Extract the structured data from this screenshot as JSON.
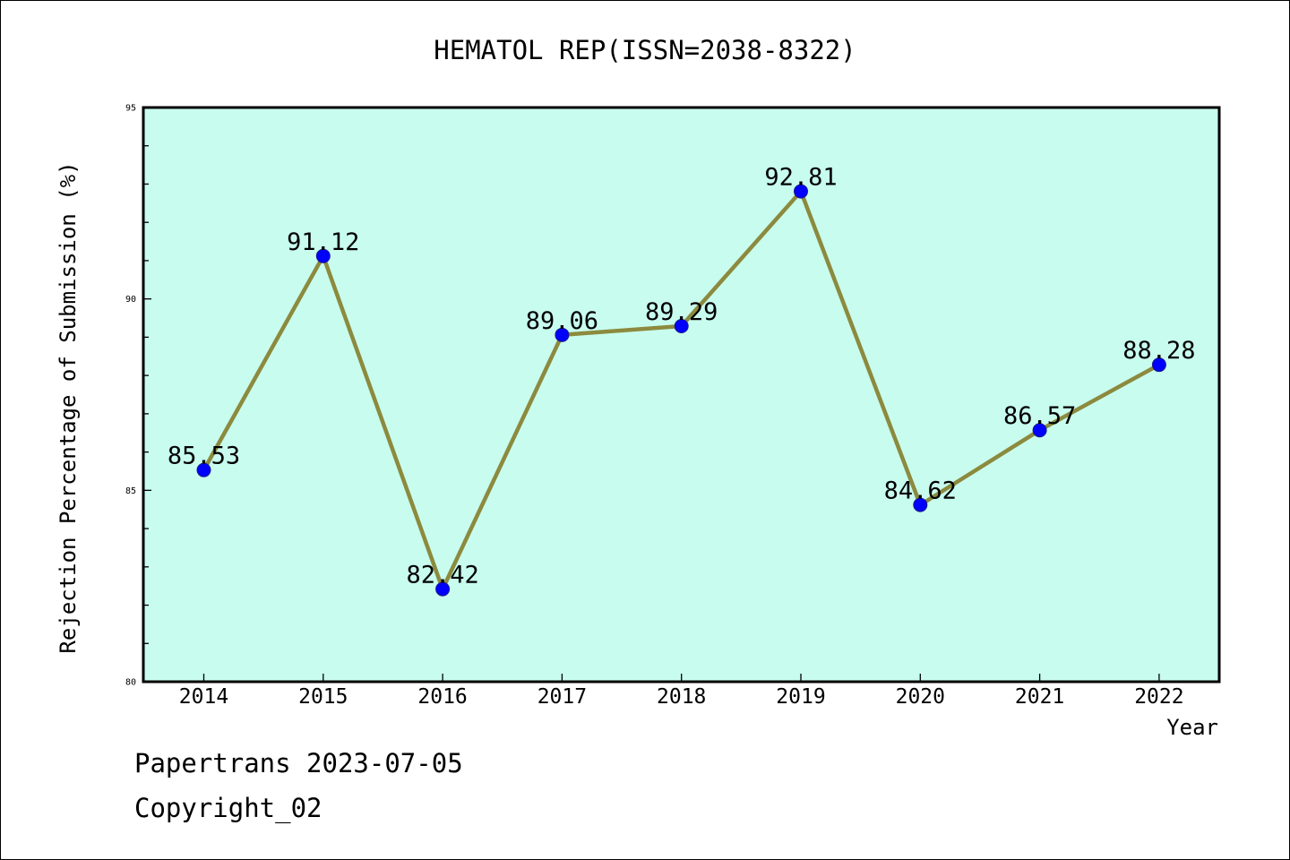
{
  "chart_data": {
    "type": "line",
    "title": "HEMATOL REP(ISSN=2038-8322)",
    "xlabel": "Year",
    "ylabel": "Rejection Percentage of Submission (%)",
    "categories": [
      "2014",
      "2015",
      "2016",
      "2017",
      "2018",
      "2019",
      "2020",
      "2021",
      "2022"
    ],
    "values": [
      85.53,
      91.12,
      82.42,
      89.06,
      89.29,
      92.81,
      84.62,
      86.57,
      88.28
    ],
    "data_labels": [
      "85.53",
      "91.12",
      "82.42",
      "89.06",
      "89.29",
      "92.81",
      "84.62",
      "86.57",
      "88.28"
    ],
    "ylim": [
      80,
      95
    ],
    "y_ticks": [
      80,
      85,
      90,
      95
    ],
    "y_tick_labels": [
      "80",
      "85",
      "90",
      "95"
    ],
    "grid": false,
    "legend": "none",
    "colors": {
      "plot_background": "#c8fcee",
      "line": "#8c8a3e",
      "marker": "#0000ff"
    }
  },
  "footer": {
    "line1": "Papertrans 2023-07-05",
    "line2": "Copyright_02"
  }
}
